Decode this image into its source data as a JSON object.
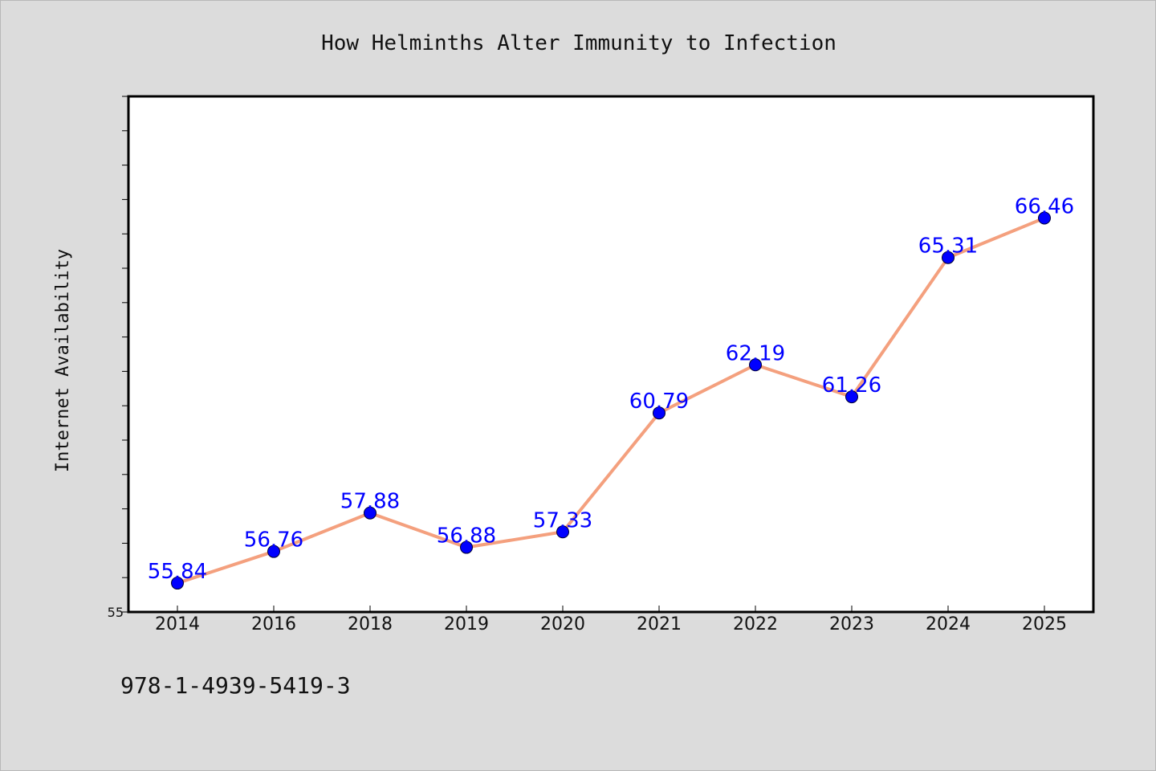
{
  "chart_data": {
    "type": "line",
    "title": "How Helminths Alter Immunity to Infection",
    "xlabel": "",
    "ylabel": "Internet Availability",
    "categories": [
      "2014",
      "2016",
      "2018",
      "2019",
      "2020",
      "2021",
      "2022",
      "2023",
      "2024",
      "2025"
    ],
    "series": [
      {
        "values": [
          55.84,
          56.76,
          57.88,
          56.88,
          57.33,
          60.79,
          62.19,
          61.26,
          65.31,
          66.46
        ]
      }
    ],
    "ylim": [
      55,
      70
    ],
    "y_tick_labels": [
      "55"
    ],
    "data_labels_shown": true,
    "grid": false,
    "legend": "none",
    "line_color": "#f4a07e",
    "marker_color": "#0000ff",
    "label_color": "#0000ff"
  },
  "footer_text": "978-1-4939-5419-3",
  "colors": {
    "background": "#dcdcdc",
    "plot_background": "#ffffff",
    "axis": "#000000"
  }
}
